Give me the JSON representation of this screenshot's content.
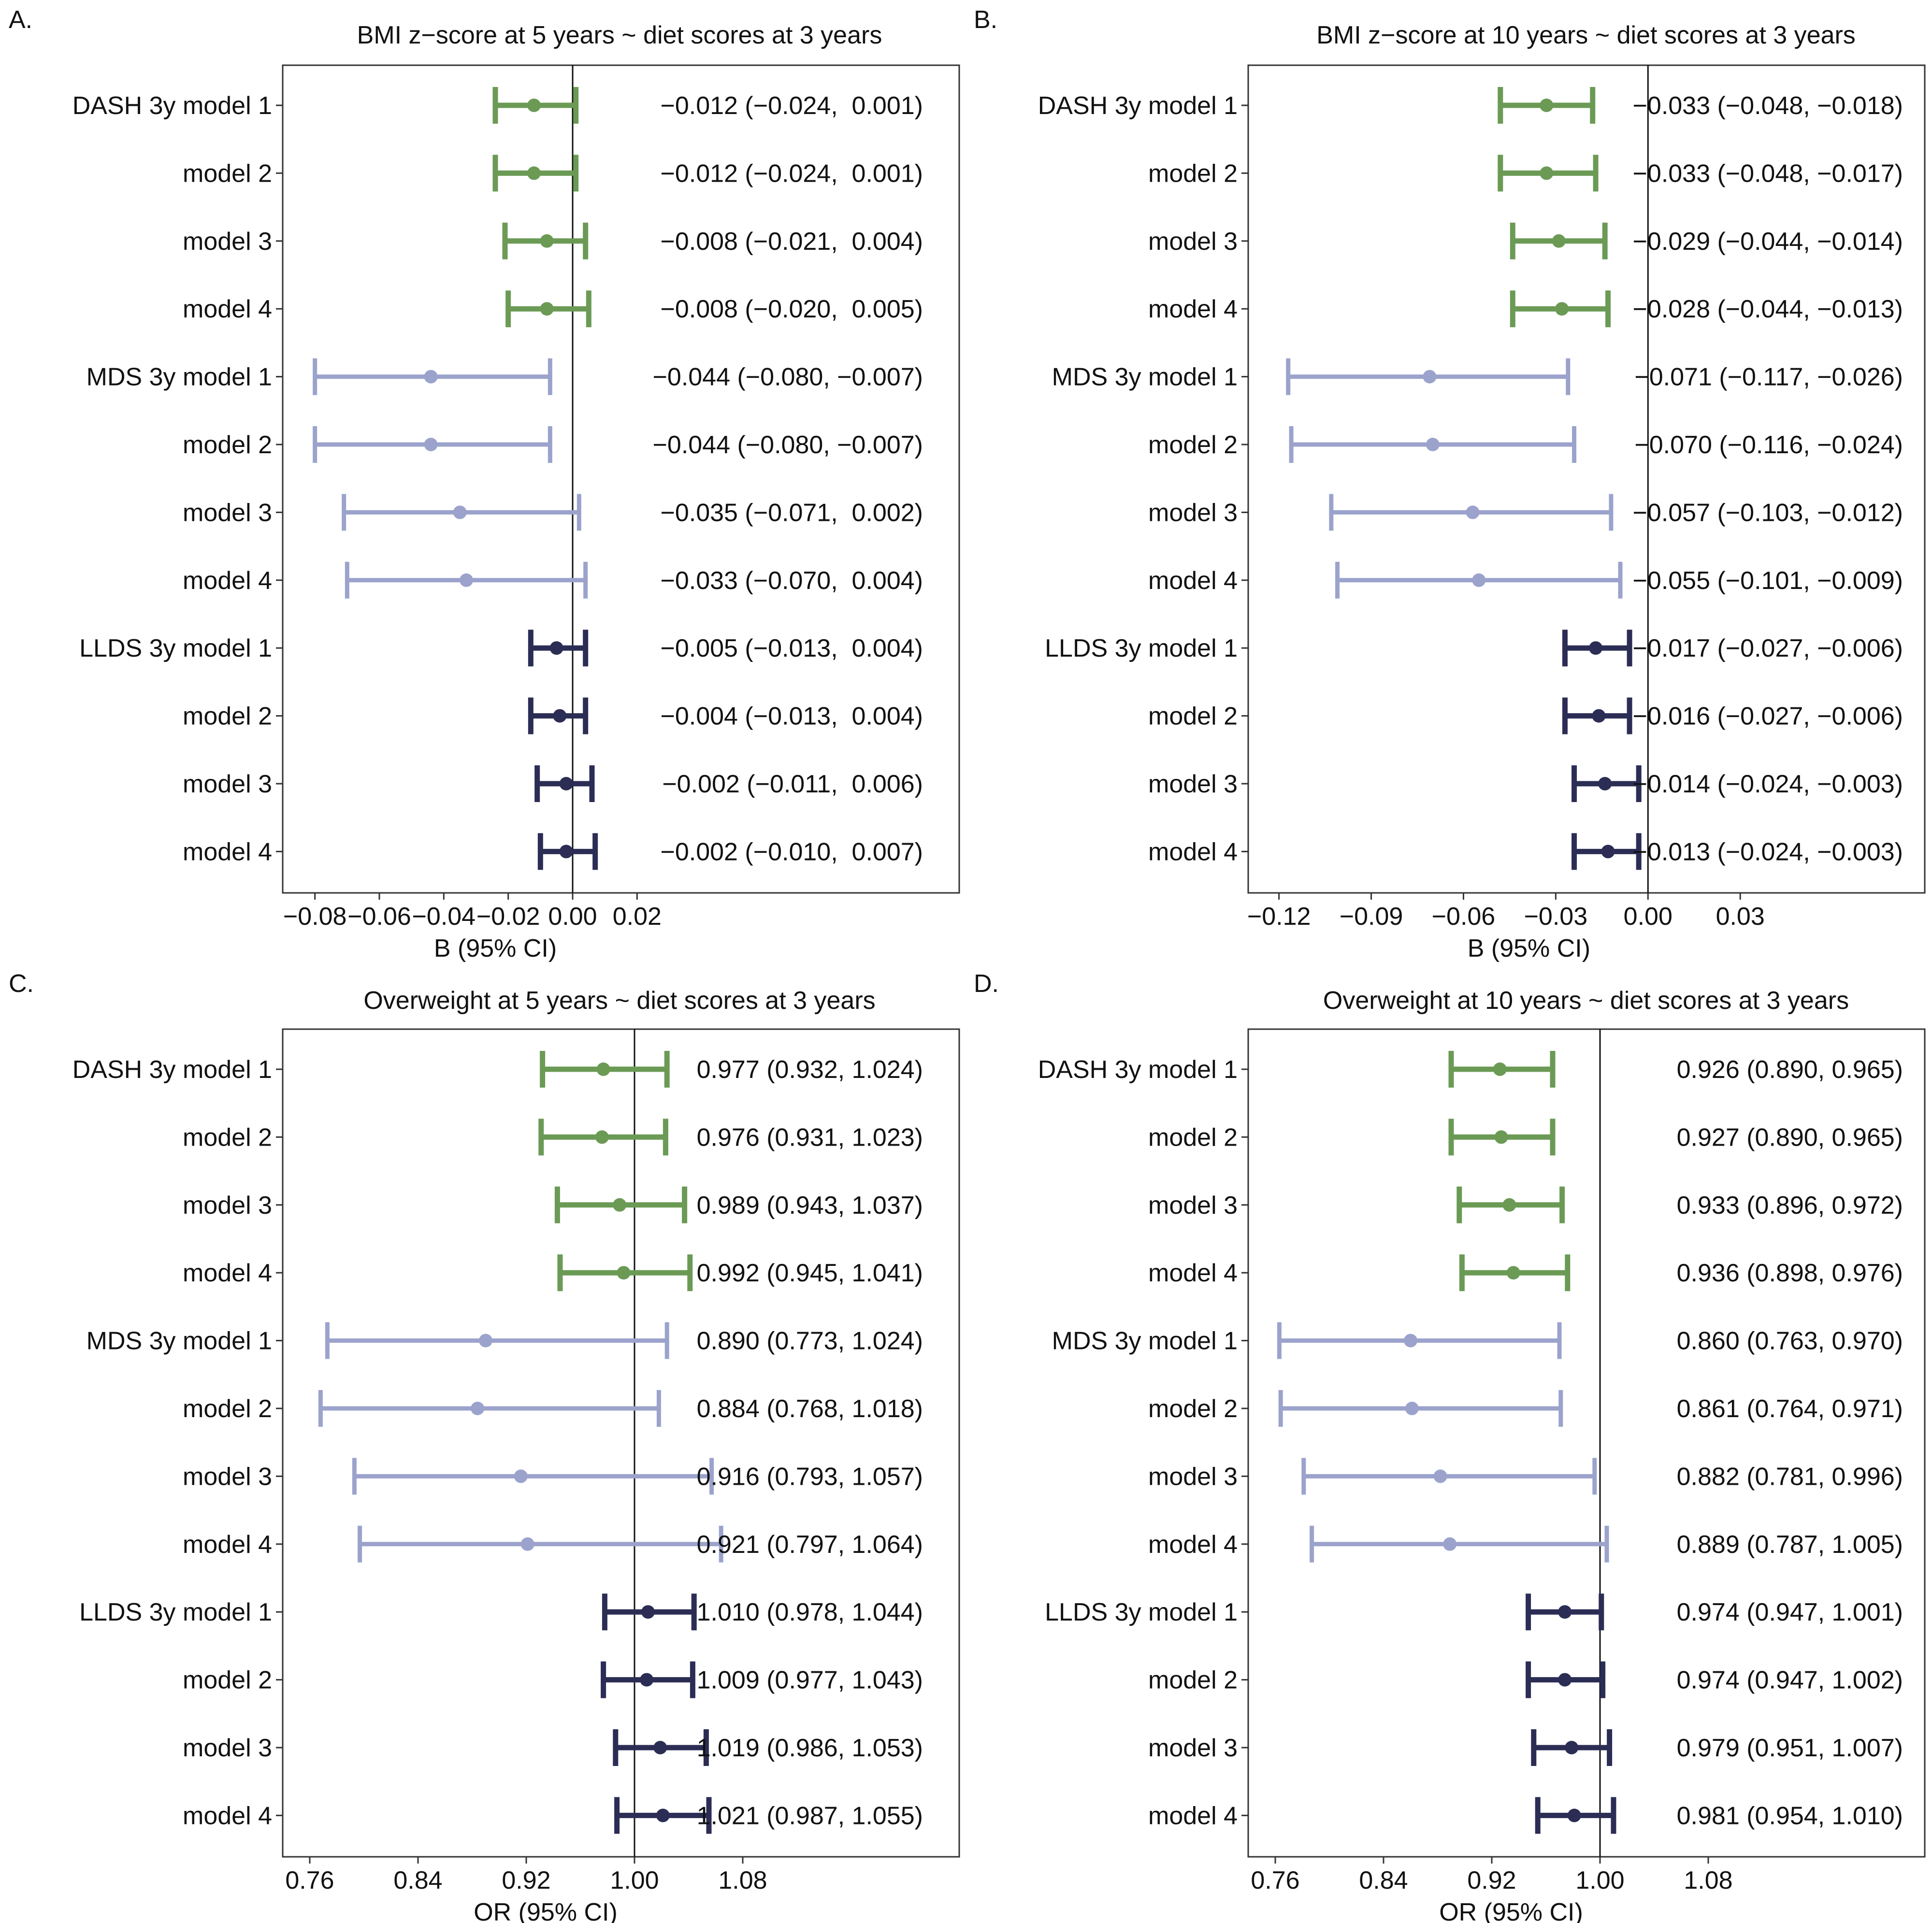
{
  "colors": {
    "DASH": "#6b9a55",
    "MDS": "#9ba3cc",
    "LLDS": "#2b2d55",
    "text": "#111111",
    "frame": "#333333"
  },
  "chart_data": [
    {
      "type": "forest",
      "panel_label": "A.",
      "title": "BMI z−score at 5 years ~ diet scores at 3 years",
      "xlabel": "B (95% CI)",
      "xlim": [
        -0.09,
        0.12
      ],
      "ref_value": 0,
      "xticks": [
        -0.08,
        -0.06,
        -0.04,
        -0.02,
        0.0,
        0.02
      ],
      "xtick_labels": [
        "−0.08",
        "−0.06",
        "−0.04",
        "−0.02",
        "0.00",
        "0.02"
      ],
      "rows": [
        {
          "label": "DASH 3y model 1",
          "group": "DASH",
          "est": -0.012,
          "lo": -0.024,
          "hi": 0.001,
          "text": "−0.012 (−0.024,  0.001)"
        },
        {
          "label": "model 2",
          "group": "DASH",
          "est": -0.012,
          "lo": -0.024,
          "hi": 0.001,
          "text": "−0.012 (−0.024,  0.001)"
        },
        {
          "label": "model 3",
          "group": "DASH",
          "est": -0.008,
          "lo": -0.021,
          "hi": 0.004,
          "text": "−0.008 (−0.021,  0.004)"
        },
        {
          "label": "model 4",
          "group": "DASH",
          "est": -0.008,
          "lo": -0.02,
          "hi": 0.005,
          "text": "−0.008 (−0.020,  0.005)"
        },
        {
          "label": "MDS 3y model 1",
          "group": "MDS",
          "est": -0.044,
          "lo": -0.08,
          "hi": -0.007,
          "text": "−0.044 (−0.080, −0.007)"
        },
        {
          "label": "model 2",
          "group": "MDS",
          "est": -0.044,
          "lo": -0.08,
          "hi": -0.007,
          "text": "−0.044 (−0.080, −0.007)"
        },
        {
          "label": "model 3",
          "group": "MDS",
          "est": -0.035,
          "lo": -0.071,
          "hi": 0.002,
          "text": "−0.035 (−0.071,  0.002)"
        },
        {
          "label": "model 4",
          "group": "MDS",
          "est": -0.033,
          "lo": -0.07,
          "hi": 0.004,
          "text": "−0.033 (−0.070,  0.004)"
        },
        {
          "label": "LLDS 3y model 1",
          "group": "LLDS",
          "est": -0.005,
          "lo": -0.013,
          "hi": 0.004,
          "text": "−0.005 (−0.013,  0.004)"
        },
        {
          "label": "model 2",
          "group": "LLDS",
          "est": -0.004,
          "lo": -0.013,
          "hi": 0.004,
          "text": "−0.004 (−0.013,  0.004)"
        },
        {
          "label": "model 3",
          "group": "LLDS",
          "est": -0.002,
          "lo": -0.011,
          "hi": 0.006,
          "text": "−0.002 (−0.011,  0.006)"
        },
        {
          "label": "model 4",
          "group": "LLDS",
          "est": -0.002,
          "lo": -0.01,
          "hi": 0.007,
          "text": "−0.002 (−0.010,  0.007)"
        }
      ]
    },
    {
      "type": "forest",
      "panel_label": "B.",
      "title": "BMI z−score at 10 years ~ diet scores at 3 years",
      "xlabel": "B (95% CI)",
      "xlim": [
        -0.13,
        0.09
      ],
      "ref_value": 0,
      "xticks": [
        -0.12,
        -0.09,
        -0.06,
        -0.03,
        0.0,
        0.03
      ],
      "xtick_labels": [
        "−0.12",
        "−0.09",
        "−0.06",
        "−0.03",
        "0.00",
        "0.03"
      ],
      "rows": [
        {
          "label": "DASH 3y model 1",
          "group": "DASH",
          "est": -0.033,
          "lo": -0.048,
          "hi": -0.018,
          "text": "−0.033 (−0.048, −0.018)"
        },
        {
          "label": "model 2",
          "group": "DASH",
          "est": -0.033,
          "lo": -0.048,
          "hi": -0.017,
          "text": "−0.033 (−0.048, −0.017)"
        },
        {
          "label": "model 3",
          "group": "DASH",
          "est": -0.029,
          "lo": -0.044,
          "hi": -0.014,
          "text": "−0.029 (−0.044, −0.014)"
        },
        {
          "label": "model 4",
          "group": "DASH",
          "est": -0.028,
          "lo": -0.044,
          "hi": -0.013,
          "text": "−0.028 (−0.044, −0.013)"
        },
        {
          "label": "MDS 3y model 1",
          "group": "MDS",
          "est": -0.071,
          "lo": -0.117,
          "hi": -0.026,
          "text": "−0.071 (−0.117, −0.026)"
        },
        {
          "label": "model 2",
          "group": "MDS",
          "est": -0.07,
          "lo": -0.116,
          "hi": -0.024,
          "text": "−0.070 (−0.116, −0.024)"
        },
        {
          "label": "model 3",
          "group": "MDS",
          "est": -0.057,
          "lo": -0.103,
          "hi": -0.012,
          "text": "−0.057 (−0.103, −0.012)"
        },
        {
          "label": "model 4",
          "group": "MDS",
          "est": -0.055,
          "lo": -0.101,
          "hi": -0.009,
          "text": "−0.055 (−0.101, −0.009)"
        },
        {
          "label": "LLDS 3y model 1",
          "group": "LLDS",
          "est": -0.017,
          "lo": -0.027,
          "hi": -0.006,
          "text": "−0.017 (−0.027, −0.006)"
        },
        {
          "label": "model 2",
          "group": "LLDS",
          "est": -0.016,
          "lo": -0.027,
          "hi": -0.006,
          "text": "−0.016 (−0.027, −0.006)"
        },
        {
          "label": "model 3",
          "group": "LLDS",
          "est": -0.014,
          "lo": -0.024,
          "hi": -0.003,
          "text": "−0.014 (−0.024, −0.003)"
        },
        {
          "label": "model 4",
          "group": "LLDS",
          "est": -0.013,
          "lo": -0.024,
          "hi": -0.003,
          "text": "−0.013 (−0.024, −0.003)"
        }
      ]
    },
    {
      "type": "forest",
      "panel_label": "C.",
      "title": "Overweight at 5 years ~ diet scores at 3 years",
      "xlabel": "OR (95% CI)",
      "xlim": [
        0.74,
        1.24
      ],
      "ref_value": 1,
      "xticks": [
        0.76,
        0.84,
        0.92,
        1.0,
        1.08
      ],
      "xtick_labels": [
        "0.76",
        "0.84",
        "0.92",
        "1.00",
        "1.08"
      ],
      "rows": [
        {
          "label": "DASH 3y model 1",
          "group": "DASH",
          "est": 0.977,
          "lo": 0.932,
          "hi": 1.024,
          "text": "0.977 (0.932, 1.024)"
        },
        {
          "label": "model 2",
          "group": "DASH",
          "est": 0.976,
          "lo": 0.931,
          "hi": 1.023,
          "text": "0.976 (0.931, 1.023)"
        },
        {
          "label": "model 3",
          "group": "DASH",
          "est": 0.989,
          "lo": 0.943,
          "hi": 1.037,
          "text": "0.989 (0.943, 1.037)"
        },
        {
          "label": "model 4",
          "group": "DASH",
          "est": 0.992,
          "lo": 0.945,
          "hi": 1.041,
          "text": "0.992 (0.945, 1.041)"
        },
        {
          "label": "MDS 3y model 1",
          "group": "MDS",
          "est": 0.89,
          "lo": 0.773,
          "hi": 1.024,
          "text": "0.890 (0.773, 1.024)"
        },
        {
          "label": "model 2",
          "group": "MDS",
          "est": 0.884,
          "lo": 0.768,
          "hi": 1.018,
          "text": "0.884 (0.768, 1.018)"
        },
        {
          "label": "model 3",
          "group": "MDS",
          "est": 0.916,
          "lo": 0.793,
          "hi": 1.057,
          "text": "0.916 (0.793, 1.057)"
        },
        {
          "label": "model 4",
          "group": "MDS",
          "est": 0.921,
          "lo": 0.797,
          "hi": 1.064,
          "text": "0.921 (0.797, 1.064)"
        },
        {
          "label": "LLDS 3y model 1",
          "group": "LLDS",
          "est": 1.01,
          "lo": 0.978,
          "hi": 1.044,
          "text": "1.010 (0.978, 1.044)"
        },
        {
          "label": "model 2",
          "group": "LLDS",
          "est": 1.009,
          "lo": 0.977,
          "hi": 1.043,
          "text": "1.009 (0.977, 1.043)"
        },
        {
          "label": "model 3",
          "group": "LLDS",
          "est": 1.019,
          "lo": 0.986,
          "hi": 1.053,
          "text": "1.019 (0.986, 1.053)"
        },
        {
          "label": "model 4",
          "group": "LLDS",
          "est": 1.021,
          "lo": 0.987,
          "hi": 1.055,
          "text": "1.021 (0.987, 1.055)"
        }
      ]
    },
    {
      "type": "forest",
      "panel_label": "D.",
      "title": "Overweight at 10 years ~ diet scores at 3 years",
      "xlabel": "OR (95% CI)",
      "xlim": [
        0.74,
        1.24
      ],
      "ref_value": 1,
      "xticks": [
        0.76,
        0.84,
        0.92,
        1.0,
        1.08
      ],
      "xtick_labels": [
        "0.76",
        "0.84",
        "0.92",
        "1.00",
        "1.08"
      ],
      "rows": [
        {
          "label": "DASH 3y model 1",
          "group": "DASH",
          "est": 0.926,
          "lo": 0.89,
          "hi": 0.965,
          "text": "0.926 (0.890, 0.965)"
        },
        {
          "label": "model 2",
          "group": "DASH",
          "est": 0.927,
          "lo": 0.89,
          "hi": 0.965,
          "text": "0.927 (0.890, 0.965)"
        },
        {
          "label": "model 3",
          "group": "DASH",
          "est": 0.933,
          "lo": 0.896,
          "hi": 0.972,
          "text": "0.933 (0.896, 0.972)"
        },
        {
          "label": "model 4",
          "group": "DASH",
          "est": 0.936,
          "lo": 0.898,
          "hi": 0.976,
          "text": "0.936 (0.898, 0.976)"
        },
        {
          "label": "MDS 3y model 1",
          "group": "MDS",
          "est": 0.86,
          "lo": 0.763,
          "hi": 0.97,
          "text": "0.860 (0.763, 0.970)"
        },
        {
          "label": "model 2",
          "group": "MDS",
          "est": 0.861,
          "lo": 0.764,
          "hi": 0.971,
          "text": "0.861 (0.764, 0.971)"
        },
        {
          "label": "model 3",
          "group": "MDS",
          "est": 0.882,
          "lo": 0.781,
          "hi": 0.996,
          "text": "0.882 (0.781, 0.996)"
        },
        {
          "label": "model 4",
          "group": "MDS",
          "est": 0.889,
          "lo": 0.787,
          "hi": 1.005,
          "text": "0.889 (0.787, 1.005)"
        },
        {
          "label": "LLDS 3y model 1",
          "group": "LLDS",
          "est": 0.974,
          "lo": 0.947,
          "hi": 1.001,
          "text": "0.974 (0.947, 1.001)"
        },
        {
          "label": "model 2",
          "group": "LLDS",
          "est": 0.974,
          "lo": 0.947,
          "hi": 1.002,
          "text": "0.974 (0.947, 1.002)"
        },
        {
          "label": "model 3",
          "group": "LLDS",
          "est": 0.979,
          "lo": 0.951,
          "hi": 1.007,
          "text": "0.979 (0.951, 1.007)"
        },
        {
          "label": "model 4",
          "group": "LLDS",
          "est": 0.981,
          "lo": 0.954,
          "hi": 1.01,
          "text": "0.981 (0.954, 1.010)"
        }
      ]
    }
  ]
}
